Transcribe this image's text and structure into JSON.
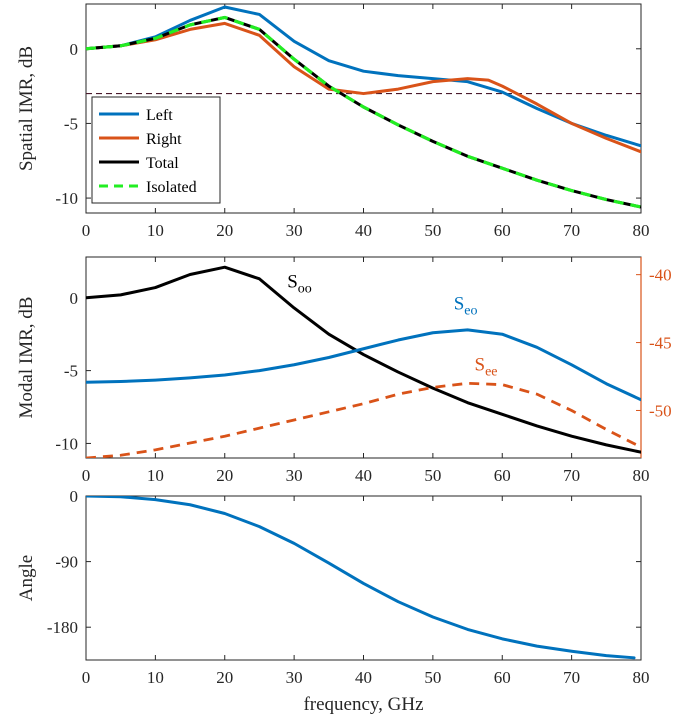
{
  "colors": {
    "left": "#0072BD",
    "right": "#D95319",
    "total": "#000000",
    "isolated": "#22EE22",
    "threshold": "#4A1A2C",
    "axis": "#262626"
  },
  "chart_data": [
    {
      "type": "line",
      "ylabel": "Spatial IMR, dB",
      "xlim": [
        0,
        80
      ],
      "ylim": [
        -11,
        3
      ],
      "xticks": [
        0,
        10,
        20,
        30,
        40,
        50,
        60,
        70,
        80
      ],
      "yticks": [
        0,
        -5,
        -10
      ],
      "xtick_labels": [
        "0",
        "10",
        "20",
        "30",
        "40",
        "50",
        "60",
        "70",
        "80"
      ],
      "ytick_labels": [
        "0",
        "-5",
        "-10"
      ],
      "legend_position": "lower-left",
      "reference_line": {
        "y": -3,
        "style": "dashed"
      },
      "series": [
        {
          "name": "Left",
          "color_key": "left",
          "style": "solid",
          "x": [
            0,
            5,
            10,
            15,
            20,
            25,
            30,
            35,
            40,
            45,
            50,
            55,
            60,
            65,
            70,
            75,
            80
          ],
          "y": [
            0,
            0.2,
            0.8,
            1.9,
            2.8,
            2.3,
            0.5,
            -0.8,
            -1.5,
            -1.8,
            -2.0,
            -2.2,
            -2.9,
            -4.0,
            -5.0,
            -5.8,
            -6.5
          ]
        },
        {
          "name": "Right",
          "color_key": "right",
          "style": "solid",
          "x": [
            0,
            5,
            10,
            15,
            20,
            25,
            30,
            35,
            40,
            45,
            50,
            55,
            58,
            60,
            65,
            70,
            75,
            80
          ],
          "y": [
            0,
            0.2,
            0.6,
            1.3,
            1.7,
            0.9,
            -1.2,
            -2.7,
            -3.0,
            -2.7,
            -2.2,
            -2.0,
            -2.1,
            -2.5,
            -3.7,
            -5.0,
            -6.0,
            -6.9
          ]
        },
        {
          "name": "Total",
          "color_key": "total",
          "style": "solid",
          "x": [
            0,
            5,
            10,
            15,
            20,
            25,
            30,
            35,
            40,
            45,
            50,
            55,
            60,
            65,
            70,
            75,
            80
          ],
          "y": [
            0,
            0.2,
            0.7,
            1.6,
            2.1,
            1.3,
            -0.7,
            -2.5,
            -3.9,
            -5.1,
            -6.2,
            -7.2,
            -8.0,
            -8.8,
            -9.5,
            -10.1,
            -10.6
          ]
        },
        {
          "name": "Isolated",
          "color_key": "isolated",
          "style": "dashed",
          "x": [
            0,
            5,
            10,
            15,
            20,
            25,
            30,
            35,
            40,
            45,
            50,
            55,
            60,
            65,
            70,
            75,
            80
          ],
          "y": [
            0,
            0.2,
            0.7,
            1.6,
            2.1,
            1.3,
            -0.7,
            -2.5,
            -3.9,
            -5.1,
            -6.2,
            -7.2,
            -8.0,
            -8.8,
            -9.5,
            -10.1,
            -10.6
          ]
        }
      ]
    },
    {
      "type": "line",
      "ylabel": "Modal IMR, dB",
      "xlim": [
        0,
        80
      ],
      "ylim": [
        -11,
        2.8
      ],
      "y2lim": [
        -53.5,
        -38.7
      ],
      "xticks": [
        0,
        10,
        20,
        30,
        40,
        50,
        60,
        70,
        80
      ],
      "yticks": [
        0,
        -5,
        -10
      ],
      "y2ticks": [
        -40,
        -45,
        -50
      ],
      "xtick_labels": [
        "0",
        "10",
        "20",
        "30",
        "40",
        "50",
        "60",
        "70",
        "80"
      ],
      "ytick_labels": [
        "0",
        "-5",
        "-10"
      ],
      "y2tick_labels": [
        "-40",
        "-45",
        "-50"
      ],
      "annotations": [
        {
          "main": "S",
          "sub": "oo",
          "x": 29,
          "y": 0.7,
          "color_key": "total"
        },
        {
          "main": "S",
          "sub": "eo",
          "x": 53,
          "y": -0.8,
          "color_key": "left"
        },
        {
          "main": "S",
          "sub": "ee",
          "x": 56,
          "y": -5.0,
          "color_key": "right"
        }
      ],
      "series": [
        {
          "label": "Soo",
          "color_key": "total",
          "style": "solid",
          "axis": "left",
          "x": [
            0,
            5,
            10,
            15,
            20,
            25,
            30,
            35,
            40,
            45,
            50,
            55,
            60,
            65,
            70,
            75,
            80
          ],
          "y": [
            0,
            0.2,
            0.7,
            1.6,
            2.1,
            1.3,
            -0.7,
            -2.5,
            -3.9,
            -5.1,
            -6.2,
            -7.2,
            -8.0,
            -8.8,
            -9.5,
            -10.1,
            -10.6
          ]
        },
        {
          "label": "Seo",
          "color_key": "left",
          "style": "solid",
          "axis": "left",
          "x": [
            0,
            5,
            10,
            15,
            20,
            25,
            30,
            35,
            40,
            45,
            50,
            55,
            60,
            65,
            70,
            75,
            80
          ],
          "y": [
            -5.8,
            -5.75,
            -5.65,
            -5.5,
            -5.3,
            -5.0,
            -4.6,
            -4.1,
            -3.5,
            -2.9,
            -2.4,
            -2.2,
            -2.5,
            -3.4,
            -4.6,
            -5.9,
            -7.0
          ]
        },
        {
          "label": "See",
          "color_key": "right",
          "style": "dashed",
          "axis": "right",
          "x": [
            0,
            5,
            10,
            15,
            20,
            25,
            30,
            35,
            40,
            45,
            50,
            55,
            60,
            65,
            70,
            75,
            80
          ],
          "y": [
            -53.5,
            -53.3,
            -52.9,
            -52.4,
            -51.9,
            -51.3,
            -50.7,
            -50.1,
            -49.5,
            -48.8,
            -48.3,
            -48.0,
            -48.1,
            -48.8,
            -50.0,
            -51.4,
            -52.7
          ]
        }
      ]
    },
    {
      "type": "line",
      "ylabel": "Angle",
      "xlabel": "frequency, GHz",
      "xlim": [
        0,
        80
      ],
      "ylim": [
        -225,
        0
      ],
      "xticks": [
        0,
        10,
        20,
        30,
        40,
        50,
        60,
        70,
        80
      ],
      "yticks": [
        0,
        -90,
        -180
      ],
      "xtick_labels": [
        "0",
        "10",
        "20",
        "30",
        "40",
        "50",
        "60",
        "70",
        "80"
      ],
      "ytick_labels": [
        "0",
        "-90",
        "-180"
      ],
      "series": [
        {
          "label": "Angle",
          "color_key": "left",
          "style": "solid",
          "x": [
            0,
            5,
            10,
            15,
            20,
            25,
            30,
            35,
            40,
            45,
            50,
            55,
            60,
            65,
            70,
            75,
            79
          ],
          "y": [
            0,
            -1,
            -5,
            -12,
            -24,
            -42,
            -65,
            -92,
            -120,
            -145,
            -166,
            -183,
            -196,
            -206,
            -213,
            -219,
            -222
          ]
        }
      ]
    }
  ]
}
